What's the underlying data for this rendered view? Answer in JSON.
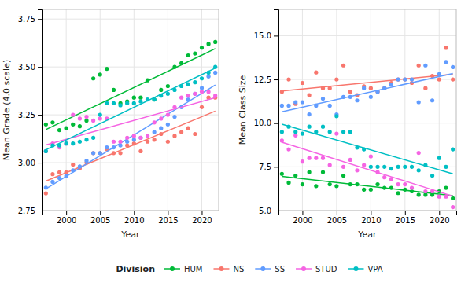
{
  "chart_data": [
    {
      "type": "scatter",
      "xlabel": "Year",
      "ylabel": "Mean Grade (4.0 scale)",
      "legend": "bottom",
      "legend_title": "Division",
      "grid": true,
      "xlim": [
        1996.5,
        2022.5
      ],
      "ylim": [
        2.75,
        3.8
      ],
      "xticks": [
        2000,
        2005,
        2010,
        2015,
        2020
      ],
      "yticks": [
        {
          "value": 2.75,
          "label": "2.75"
        },
        {
          "value": 3.0,
          "label": "3.00"
        },
        {
          "value": 3.25,
          "label": "3.25"
        },
        {
          "value": 3.5,
          "label": "3.50"
        },
        {
          "value": 3.75,
          "label": "3.75"
        }
      ],
      "x": [
        1997,
        1998,
        1999,
        2000,
        2001,
        2002,
        2003,
        2004,
        2005,
        2006,
        2007,
        2008,
        2009,
        2010,
        2011,
        2012,
        2013,
        2014,
        2015,
        2016,
        2017,
        2018,
        2019,
        2020,
        2021,
        2022
      ],
      "series": [
        {
          "name": "HUM",
          "color": "#00BA38",
          "values": [
            3.2,
            3.21,
            3.17,
            3.18,
            3.2,
            3.19,
            3.22,
            3.44,
            3.46,
            3.49,
            3.38,
            3.31,
            3.32,
            3.34,
            3.34,
            3.43,
            3.33,
            3.38,
            3.4,
            3.5,
            3.52,
            3.56,
            3.57,
            3.6,
            3.62,
            3.63
          ],
          "fit": {
            "x": [
              1997,
              2022
            ],
            "values": [
              3.1731,
              3.5954
            ]
          }
        },
        {
          "name": "NS",
          "color": "#F8766D",
          "values": [
            2.84,
            2.94,
            2.95,
            2.95,
            2.99,
            2.97,
            3.0,
            3.05,
            3.05,
            3.07,
            3.05,
            3.05,
            3.09,
            3.1,
            3.06,
            3.11,
            3.12,
            3.15,
            3.11,
            3.14,
            3.16,
            3.18,
            3.15,
            3.29,
            3.34,
            3.34
          ],
          "fit": {
            "x": [
              1997,
              2022
            ],
            "values": [
              2.9037,
              3.2694
            ]
          }
        },
        {
          "name": "SS",
          "color": "#619CFF",
          "values": [
            2.87,
            2.9,
            2.92,
            2.93,
            2.96,
            2.98,
            3.01,
            3.05,
            3.05,
            3.08,
            3.08,
            3.09,
            3.11,
            3.12,
            3.13,
            3.14,
            3.16,
            3.18,
            3.2,
            3.24,
            3.29,
            3.33,
            3.36,
            3.39,
            3.45,
            3.47
          ],
          "fit": {
            "x": [
              1997,
              2022
            ],
            "values": [
              2.8632,
              3.4053
            ]
          }
        },
        {
          "name": "STUD",
          "color": "#F564E3",
          "values": [
            3.06,
            3.1,
            3.08,
            3.1,
            3.25,
            3.23,
            3.24,
            3.22,
            3.23,
            3.23,
            3.11,
            3.11,
            3.13,
            3.14,
            3.13,
            3.14,
            3.21,
            3.23,
            3.25,
            3.29,
            3.34,
            3.35,
            3.36,
            3.37,
            3.37,
            3.35
          ],
          "fit": {
            "x": [
              1997,
              2022
            ],
            "values": [
              3.0927,
              3.3397
            ]
          }
        },
        {
          "name": "VPA",
          "color": "#00BFC4",
          "values": [
            3.06,
            3.09,
            3.09,
            3.1,
            3.1,
            3.11,
            3.12,
            3.13,
            3.25,
            3.31,
            3.31,
            3.3,
            3.31,
            3.31,
            3.32,
            3.33,
            3.33,
            3.35,
            3.36,
            3.38,
            3.4,
            3.41,
            3.42,
            3.44,
            3.47,
            3.5
          ],
          "fit": {
            "x": [
              1997,
              2022
            ],
            "values": [
              3.0675,
              3.494
            ]
          }
        }
      ]
    },
    {
      "type": "scatter",
      "xlabel": "Year",
      "ylabel": "Mean Class Size",
      "grid": true,
      "xlim": [
        1996.5,
        2022.5
      ],
      "ylim": [
        5.0,
        16.5
      ],
      "xticks": [
        2000,
        2005,
        2010,
        2015,
        2020
      ],
      "yticks": [
        {
          "value": 5.0,
          "label": "5.0"
        },
        {
          "value": 7.5,
          "label": "7.5"
        },
        {
          "value": 10.0,
          "label": "10.0"
        },
        {
          "value": 12.5,
          "label": "12.5"
        },
        {
          "value": 15.0,
          "label": "15.0"
        }
      ],
      "x": [
        1997,
        1998,
        1999,
        2000,
        2001,
        2002,
        2003,
        2004,
        2005,
        2006,
        2007,
        2008,
        2009,
        2010,
        2011,
        2012,
        2013,
        2014,
        2015,
        2016,
        2017,
        2018,
        2019,
        2020,
        2021,
        2022
      ],
      "series": [
        {
          "name": "HUM",
          "color": "#00BA38",
          "values": [
            7.1,
            6.6,
            7.0,
            6.5,
            7.2,
            6.4,
            7.2,
            6.5,
            6.4,
            7.0,
            6.5,
            6.5,
            6.2,
            6.2,
            6.5,
            6.3,
            6.3,
            6.0,
            6.2,
            6.1,
            5.9,
            5.9,
            5.9,
            6.1,
            6.3,
            5.7
          ],
          "fit": {
            "x": [
              1997,
              2022
            ],
            "values": [
              6.9547,
              5.853
            ]
          }
        },
        {
          "name": "NS",
          "color": "#F8766D",
          "values": [
            11.8,
            12.5,
            11.1,
            12.3,
            11.6,
            12.9,
            12.0,
            12.0,
            12.5,
            13.3,
            11.8,
            11.6,
            12.1,
            12.0,
            11.8,
            12.0,
            12.3,
            12.5,
            12.5,
            12.3,
            13.3,
            12.0,
            12.7,
            12.5,
            14.3,
            12.5
          ],
          "fit": {
            "x": [
              1997,
              2022
            ],
            "values": [
              11.8342,
              12.7966
            ]
          }
        },
        {
          "name": "SS",
          "color": "#619CFF",
          "values": [
            11.0,
            11.0,
            11.2,
            11.2,
            10.5,
            11.0,
            11.4,
            11.0,
            10.5,
            11.5,
            11.5,
            11.3,
            12.0,
            11.5,
            11.8,
            12.0,
            12.2,
            12.5,
            12.5,
            12.5,
            11.2,
            13.3,
            11.3,
            12.8,
            13.5,
            13.2
          ],
          "fit": {
            "x": [
              1997,
              2022
            ],
            "values": [
              10.653,
              12.8393
            ]
          }
        },
        {
          "name": "STUD",
          "color": "#F564E3",
          "values": [
            9.0,
            8.5,
            9.3,
            7.8,
            8.0,
            8.0,
            8.0,
            7.6,
            9.4,
            7.5,
            7.9,
            7.3,
            7.6,
            8.1,
            7.2,
            6.9,
            6.8,
            6.5,
            6.5,
            6.3,
            8.3,
            6.1,
            6.1,
            5.8,
            5.8,
            5.2
          ],
          "fit": {
            "x": [
              1997,
              2022
            ],
            "values": [
              8.9068,
              5.8239
            ]
          }
        },
        {
          "name": "VPA",
          "color": "#00BFC4",
          "values": [
            9.5,
            9.8,
            9.5,
            9.4,
            9.8,
            9.5,
            9.8,
            9.5,
            10.4,
            9.5,
            9.5,
            8.6,
            8.5,
            7.5,
            7.5,
            7.5,
            7.4,
            7.5,
            7.5,
            7.5,
            7.3,
            7.6,
            7.0,
            8.0,
            7.5,
            8.5
          ],
          "fit": {
            "x": [
              1997,
              2022
            ],
            "values": [
              9.9436,
              7.1026
            ]
          }
        }
      ]
    }
  ]
}
